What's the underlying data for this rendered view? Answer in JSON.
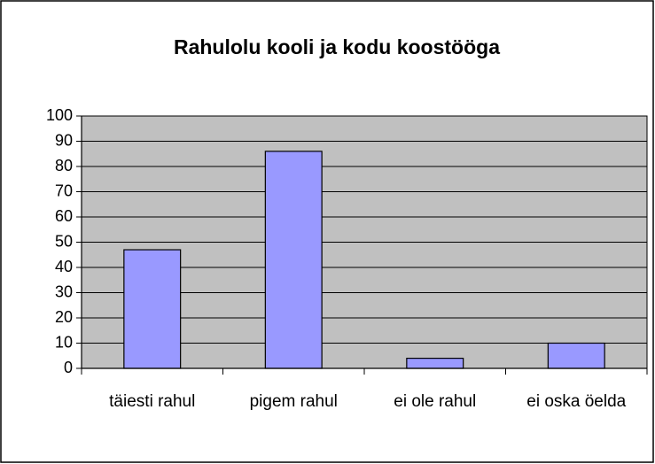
{
  "chart_data": {
    "type": "bar",
    "title": "Rahulolu kooli ja kodu koostööga",
    "categories": [
      "täiesti rahul",
      "pigem rahul",
      "ei ole rahul",
      "ei oska öelda"
    ],
    "values": [
      47,
      86,
      4,
      10
    ],
    "color": "#9999ff",
    "plot_background": "#c0c0c0",
    "ylim": [
      0,
      100
    ],
    "yticks": [
      0,
      10,
      20,
      30,
      40,
      50,
      60,
      70,
      80,
      90,
      100
    ],
    "grid": true
  }
}
